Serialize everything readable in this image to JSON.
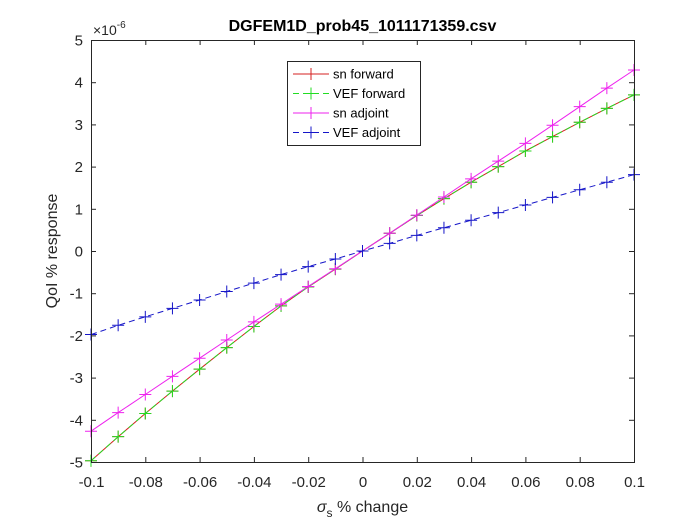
{
  "chart_data": {
    "type": "line",
    "title": "DGFEM1D_prob45_1011171359.csv",
    "xlabel_symbol": "σ",
    "xlabel_subscript": "s",
    "xlabel_rest": " % change",
    "ylabel": "QoI % response",
    "y_exponent_base": "×10",
    "y_exponent_power": "-6",
    "xlim": [
      -0.1,
      0.1
    ],
    "ylim": [
      -5,
      5
    ],
    "x_ticks": [
      -0.1,
      -0.08,
      -0.06,
      -0.04,
      -0.02,
      0,
      0.02,
      0.04,
      0.06,
      0.08,
      0.1
    ],
    "x_tick_labels": [
      "-0.1",
      "-0.08",
      "-0.06",
      "-0.04",
      "-0.02",
      "0",
      "0.02",
      "0.04",
      "0.06",
      "0.08",
      "0.1"
    ],
    "y_ticks": [
      -5,
      -4,
      -3,
      -2,
      -1,
      0,
      1,
      2,
      3,
      4,
      5
    ],
    "y_tick_labels": [
      "-5",
      "-4",
      "-3",
      "-2",
      "-1",
      "0",
      "1",
      "2",
      "3",
      "4",
      "5"
    ],
    "grid": false,
    "legend_position": "top-center",
    "x": [
      -0.1,
      -0.09,
      -0.08,
      -0.07,
      -0.06,
      -0.05,
      -0.04,
      -0.03,
      -0.02,
      -0.01,
      0,
      0.01,
      0.02,
      0.03,
      0.04,
      0.05,
      0.06,
      0.07,
      0.08,
      0.09,
      0.1
    ],
    "series": [
      {
        "name": "sn forward",
        "color": "#d62020",
        "dash": "solid",
        "values": [
          -4.97,
          -4.4,
          -3.85,
          -3.32,
          -2.8,
          -2.29,
          -1.79,
          -1.3,
          -0.85,
          -0.43,
          0.0,
          0.42,
          0.84,
          1.24,
          1.63,
          2.0,
          2.37,
          2.71,
          3.05,
          3.38,
          3.7
        ]
      },
      {
        "name": "VEF forward",
        "color": "#22dd22",
        "dash": "dashed",
        "values": [
          -4.97,
          -4.4,
          -3.85,
          -3.32,
          -2.8,
          -2.29,
          -1.79,
          -1.3,
          -0.85,
          -0.43,
          0.0,
          0.42,
          0.84,
          1.24,
          1.63,
          2.0,
          2.37,
          2.71,
          3.05,
          3.38,
          3.7
        ]
      },
      {
        "name": "sn adjoint",
        "color": "#ee22ee",
        "dash": "solid",
        "values": [
          -4.27,
          -3.83,
          -3.4,
          -2.97,
          -2.54,
          -2.11,
          -1.68,
          -1.26,
          -0.84,
          -0.42,
          0.0,
          0.42,
          0.85,
          1.28,
          1.71,
          2.13,
          2.55,
          2.98,
          3.42,
          3.86,
          4.29
        ]
      },
      {
        "name": "VEF adjoint",
        "color": "#1515c8",
        "dash": "dashed",
        "values": [
          -1.98,
          -1.76,
          -1.56,
          -1.36,
          -1.16,
          -0.96,
          -0.76,
          -0.56,
          -0.37,
          -0.19,
          0.0,
          0.18,
          0.37,
          0.55,
          0.73,
          0.91,
          1.09,
          1.27,
          1.45,
          1.63,
          1.81
        ]
      }
    ]
  }
}
